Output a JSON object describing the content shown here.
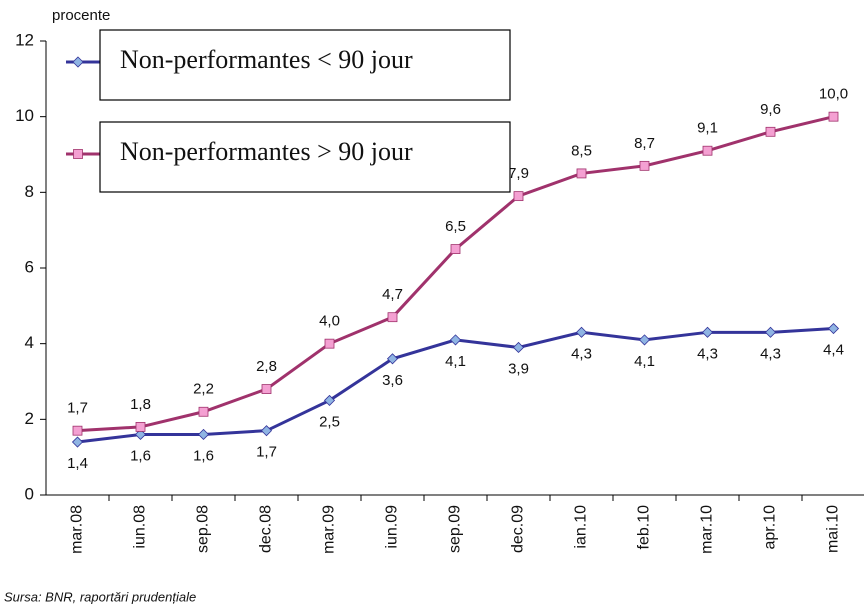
{
  "chart_data": {
    "type": "line",
    "y_label": "procente",
    "source": "Sursa: BNR, raportări prudențiale",
    "categories": [
      "mar.08",
      "iun.08",
      "sep.08",
      "dec.08",
      "mar.09",
      "iun.09",
      "sep.09",
      "dec.09",
      "ian.10",
      "feb.10",
      "mar.10",
      "apr.10",
      "mai.10"
    ],
    "series": [
      {
        "name": "Non-performantes < 90 jour",
        "color": "#34349a",
        "marker_color": "#8fb4e3",
        "marker": "diamond",
        "label_position": "below",
        "values": [
          1.4,
          1.6,
          1.6,
          1.7,
          2.5,
          3.6,
          4.1,
          3.9,
          4.3,
          4.1,
          4.3,
          4.3,
          4.4
        ],
        "value_labels": [
          "1,4",
          "1,6",
          "1,6",
          "1,7",
          "2,5",
          "3,6",
          "4,1",
          "3,9",
          "4,3",
          "4,1",
          "4,3",
          "4,3",
          "4,4"
        ]
      },
      {
        "name": "Non-performantes > 90 jour",
        "color": "#a0326c",
        "marker_color": "#f4a0d2",
        "marker": "square",
        "label_position": "above",
        "values": [
          1.7,
          1.8,
          2.2,
          2.8,
          4.0,
          4.7,
          6.5,
          7.9,
          8.5,
          8.7,
          9.1,
          9.6,
          10.0
        ],
        "value_labels": [
          "1,7",
          "1,8",
          "2,2",
          "2,8",
          "4,0",
          "4,7",
          "6,5",
          "7,9",
          "8,5",
          "8,7",
          "9,1",
          "9,6",
          "10,0"
        ]
      }
    ],
    "ylim": [
      0,
      12
    ],
    "yticks": [
      0,
      2,
      4,
      6,
      8,
      10,
      12
    ],
    "legend": "upper left"
  }
}
